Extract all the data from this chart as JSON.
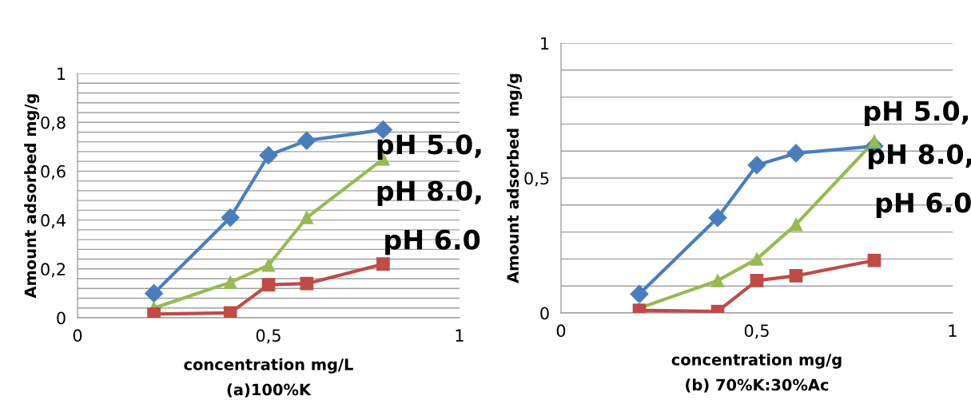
{
  "chart_data": [
    {
      "type": "line",
      "xlabel": "concentration mg/L",
      "ylabel": "Amount adsorbed mg/g",
      "annotations": [
        "(a)100%K"
      ],
      "x": [
        0.2,
        0.4,
        0.5,
        0.6,
        0.8
      ],
      "grid": "y",
      "legend": false,
      "line_style": "solid",
      "xlim": [
        0,
        1
      ],
      "xticks": [
        0,
        {
          "value": 0.5,
          "label": "0,5"
        },
        1
      ],
      "ylim": [
        0,
        1
      ],
      "yticks": [
        0,
        {
          "value": 0.04,
          "label": null
        },
        {
          "value": 0.08,
          "label": null
        },
        {
          "value": 0.12,
          "label": null
        },
        {
          "value": 0.16,
          "label": null
        },
        {
          "value": 0.2,
          "label": "0,2"
        },
        {
          "value": 0.24,
          "label": null
        },
        {
          "value": 0.28,
          "label": null
        },
        {
          "value": 0.32,
          "label": null
        },
        {
          "value": 0.36,
          "label": null
        },
        {
          "value": 0.4,
          "label": "0,4"
        },
        {
          "value": 0.44,
          "label": null
        },
        {
          "value": 0.48,
          "label": null
        },
        {
          "value": 0.52,
          "label": null
        },
        {
          "value": 0.56,
          "label": null
        },
        {
          "value": 0.6,
          "label": "0,6"
        },
        {
          "value": 0.64,
          "label": null
        },
        {
          "value": 0.68,
          "label": null
        },
        {
          "value": 0.72,
          "label": null
        },
        {
          "value": 0.76,
          "label": null
        },
        {
          "value": 0.8,
          "label": "0,8"
        },
        {
          "value": 0.84,
          "label": null
        },
        {
          "value": 0.88,
          "label": null
        },
        {
          "value": 0.92,
          "label": null
        },
        {
          "value": 0.96,
          "label": null
        },
        1
      ],
      "series": [
        {
          "name": "pH 5.0,",
          "color": "#4a7ebb",
          "marker": "diamond",
          "values": [
            0.1,
            0.41,
            0.665,
            0.725,
            0.77
          ]
        },
        {
          "name": "pH 8.0,",
          "color": "#98b954",
          "marker": "triangle",
          "values": [
            0.04,
            0.145,
            0.215,
            0.41,
            0.65
          ]
        },
        {
          "name": "pH 6.0",
          "color": "#be4b48",
          "marker": "square",
          "values": [
            0.015,
            0.02,
            0.135,
            0.14,
            0.22
          ]
        }
      ]
    },
    {
      "type": "line",
      "xlabel": "concentration mg/g",
      "ylabel": "Amount adsorbed  mg/g",
      "annotations": [
        "(b) 70%K:30%Ac"
      ],
      "x": [
        0.2,
        0.4,
        0.5,
        0.6,
        0.8
      ],
      "grid": "y",
      "legend": false,
      "line_style": "solid",
      "xlim": [
        0,
        1
      ],
      "xticks": [
        0,
        {
          "value": 0.5,
          "label": "0,5"
        },
        1
      ],
      "ylim": [
        0,
        1
      ],
      "yticks": [
        0,
        {
          "value": 0.1,
          "label": null
        },
        {
          "value": 0.2,
          "label": null
        },
        {
          "value": 0.3,
          "label": null
        },
        {
          "value": 0.4,
          "label": null
        },
        {
          "value": 0.5,
          "label": "0,5"
        },
        {
          "value": 0.6,
          "label": null
        },
        {
          "value": 0.7,
          "label": null
        },
        {
          "value": 0.8,
          "label": null
        },
        {
          "value": 0.9,
          "label": null
        },
        1
      ],
      "series": [
        {
          "name": "pH 5.0,",
          "color": "#4a7ebb",
          "marker": "diamond",
          "values": [
            0.07,
            0.353,
            0.548,
            0.592,
            0.618
          ]
        },
        {
          "name": "pH 8.0,",
          "color": "#98b954",
          "marker": "triangle",
          "values": [
            0.018,
            0.12,
            0.2,
            0.328,
            0.636
          ]
        },
        {
          "name": "pH 6.0",
          "color": "#be4b48",
          "marker": "square",
          "values": [
            0.01,
            0.006,
            0.12,
            0.138,
            0.195
          ]
        }
      ]
    }
  ]
}
